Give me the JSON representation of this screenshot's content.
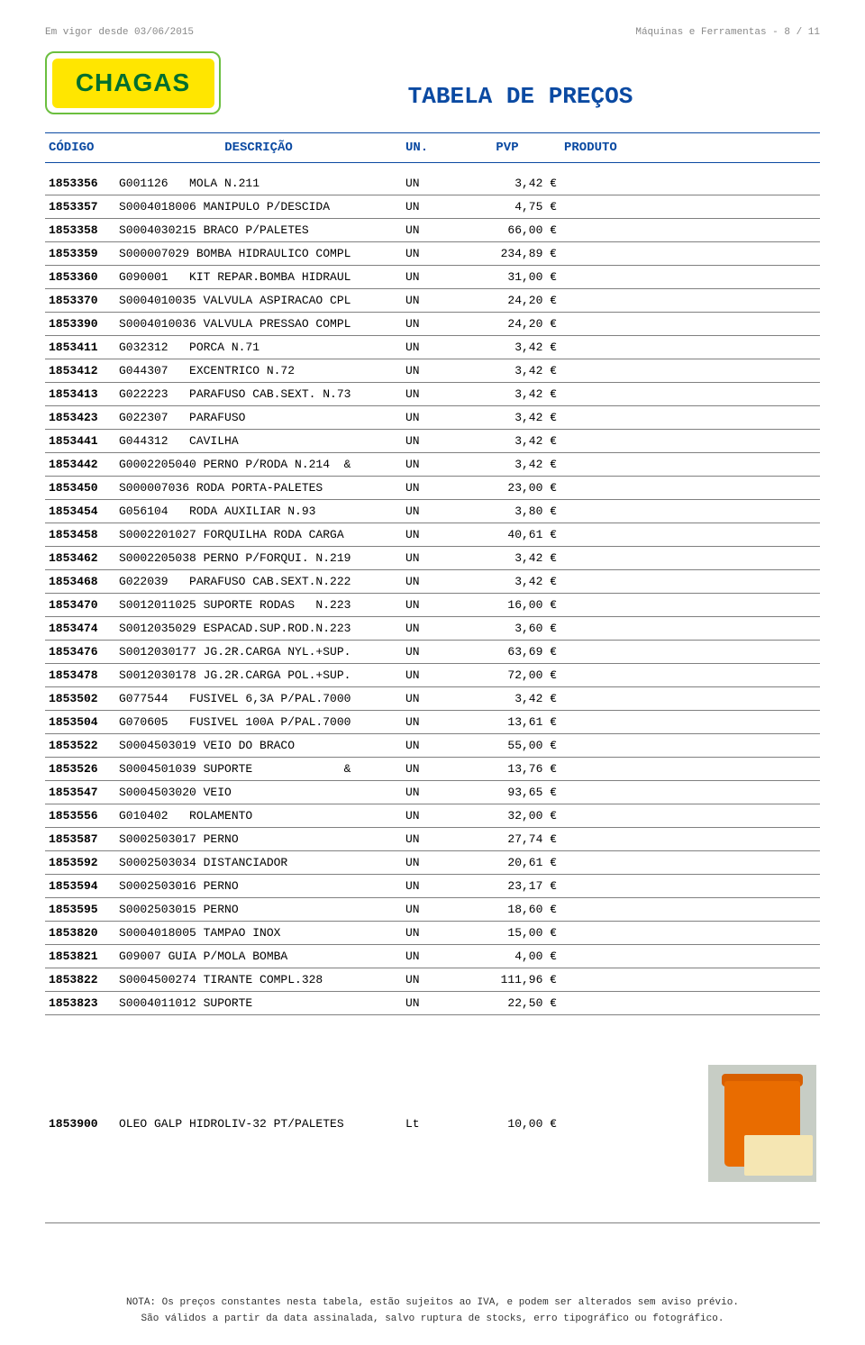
{
  "meta": {
    "effective": "Em vigor desde 03/06/2015",
    "category": "Máquinas e Ferramentas  -  8 / 11"
  },
  "logo_text": "CHAGAS",
  "title": "TABELA DE PREÇOS",
  "columns": {
    "codigo": "CÓDIGO",
    "descricao": "DESCRIÇÃO",
    "un": "UN.",
    "pvp": "PVP",
    "produto": "PRODUTO"
  },
  "colors": {
    "header_blue": "#0b4aa2",
    "logo_green": "#006f2e",
    "logo_yellow": "#ffe600",
    "grey_text": "#888888"
  },
  "rows": [
    {
      "codigo": "1853356",
      "desc": "G001126   MOLA N.211",
      "un": "UN",
      "pvp": "3,42 €"
    },
    {
      "codigo": "1853357",
      "desc": "S0004018006 MANIPULO P/DESCIDA",
      "un": "UN",
      "pvp": "4,75 €"
    },
    {
      "codigo": "1853358",
      "desc": "S0004030215 BRACO P/PALETES",
      "un": "UN",
      "pvp": "66,00 €"
    },
    {
      "codigo": "1853359",
      "desc": "S000007029 BOMBA HIDRAULICO COMPL",
      "un": "UN",
      "pvp": "234,89 €"
    },
    {
      "codigo": "1853360",
      "desc": "G090001   KIT REPAR.BOMBA HIDRAUL",
      "un": "UN",
      "pvp": "31,00 €"
    },
    {
      "codigo": "1853370",
      "desc": "S0004010035 VALVULA ASPIRACAO CPL",
      "un": "UN",
      "pvp": "24,20 €"
    },
    {
      "codigo": "1853390",
      "desc": "S0004010036 VALVULA PRESSAO COMPL",
      "un": "UN",
      "pvp": "24,20 €"
    },
    {
      "codigo": "1853411",
      "desc": "G032312   PORCA N.71",
      "un": "UN",
      "pvp": "3,42 €"
    },
    {
      "codigo": "1853412",
      "desc": "G044307   EXCENTRICO N.72",
      "un": "UN",
      "pvp": "3,42 €"
    },
    {
      "codigo": "1853413",
      "desc": "G022223   PARAFUSO CAB.SEXT. N.73",
      "un": "UN",
      "pvp": "3,42 €"
    },
    {
      "codigo": "1853423",
      "desc": "G022307   PARAFUSO",
      "un": "UN",
      "pvp": "3,42 €"
    },
    {
      "codigo": "1853441",
      "desc": "G044312   CAVILHA",
      "un": "UN",
      "pvp": "3,42 €"
    },
    {
      "codigo": "1853442",
      "desc": "G0002205040 PERNO P/RODA N.214  &",
      "un": "UN",
      "pvp": "3,42 €"
    },
    {
      "codigo": "1853450",
      "desc": "S000007036 RODA PORTA-PALETES",
      "un": "UN",
      "pvp": "23,00 €"
    },
    {
      "codigo": "1853454",
      "desc": "G056104   RODA AUXILIAR N.93",
      "un": "UN",
      "pvp": "3,80 €"
    },
    {
      "codigo": "1853458",
      "desc": "S0002201027 FORQUILHA RODA CARGA",
      "un": "UN",
      "pvp": "40,61 €"
    },
    {
      "codigo": "1853462",
      "desc": "S0002205038 PERNO P/FORQUI. N.219",
      "un": "UN",
      "pvp": "3,42 €"
    },
    {
      "codigo": "1853468",
      "desc": "G022039   PARAFUSO CAB.SEXT.N.222",
      "un": "UN",
      "pvp": "3,42 €"
    },
    {
      "codigo": "1853470",
      "desc": "S0012011025 SUPORTE RODAS   N.223",
      "un": "UN",
      "pvp": "16,00 €"
    },
    {
      "codigo": "1853474",
      "desc": "S0012035029 ESPACAD.SUP.ROD.N.223",
      "un": "UN",
      "pvp": "3,60 €"
    },
    {
      "codigo": "1853476",
      "desc": "S0012030177 JG.2R.CARGA NYL.+SUP.",
      "un": "UN",
      "pvp": "63,69 €"
    },
    {
      "codigo": "1853478",
      "desc": "S0012030178 JG.2R.CARGA POL.+SUP.",
      "un": "UN",
      "pvp": "72,00 €"
    },
    {
      "codigo": "1853502",
      "desc": "G077544   FUSIVEL 6,3A P/PAL.7000",
      "un": "UN",
      "pvp": "3,42 €"
    },
    {
      "codigo": "1853504",
      "desc": "G070605   FUSIVEL 100A P/PAL.7000",
      "un": "UN",
      "pvp": "13,61 €"
    },
    {
      "codigo": "1853522",
      "desc": "S0004503019 VEIO DO BRACO",
      "un": "UN",
      "pvp": "55,00 €"
    },
    {
      "codigo": "1853526",
      "desc": "S0004501039 SUPORTE             &",
      "un": "UN",
      "pvp": "13,76 €"
    },
    {
      "codigo": "1853547",
      "desc": "S0004503020 VEIO",
      "un": "UN",
      "pvp": "93,65 €"
    },
    {
      "codigo": "1853556",
      "desc": "G010402   ROLAMENTO",
      "un": "UN",
      "pvp": "32,00 €"
    },
    {
      "codigo": "1853587",
      "desc": "S0002503017 PERNO",
      "un": "UN",
      "pvp": "27,74 €"
    },
    {
      "codigo": "1853592",
      "desc": "S0002503034 DISTANCIADOR",
      "un": "UN",
      "pvp": "20,61 €"
    },
    {
      "codigo": "1853594",
      "desc": "S0002503016 PERNO",
      "un": "UN",
      "pvp": "23,17 €"
    },
    {
      "codigo": "1853595",
      "desc": "S0002503015 PERNO",
      "un": "UN",
      "pvp": "18,60 €"
    },
    {
      "codigo": "1853820",
      "desc": "S0004018005 TAMPAO INOX",
      "un": "UN",
      "pvp": "15,00 €"
    },
    {
      "codigo": "1853821",
      "desc": "G09007 GUIA P/MOLA BOMBA",
      "un": "UN",
      "pvp": "4,00 €"
    },
    {
      "codigo": "1853822",
      "desc": "S0004500274 TIRANTE COMPL.328",
      "un": "UN",
      "pvp": "111,96 €"
    },
    {
      "codigo": "1853823",
      "desc": "S0004011012 SUPORTE",
      "un": "UN",
      "pvp": "22,50 €"
    }
  ],
  "product_row": {
    "codigo": "1853900",
    "desc": "OLEO GALP HIDROLIV-32 PT/PALETES",
    "un": "Lt",
    "pvp": "10,00 €",
    "image_colors": {
      "bg": "#c7cdc5",
      "bucket": "#e96c00",
      "lid": "#d85f00",
      "label": "#f5e6b3"
    }
  },
  "footer": {
    "line1": "NOTA: Os preços constantes nesta tabela, estão sujeitos ao IVA, e podem ser alterados sem aviso prévio.",
    "line2": "São válidos a partir da data assinalada, salvo ruptura de stocks, erro tipográfico ou fotográfico."
  }
}
